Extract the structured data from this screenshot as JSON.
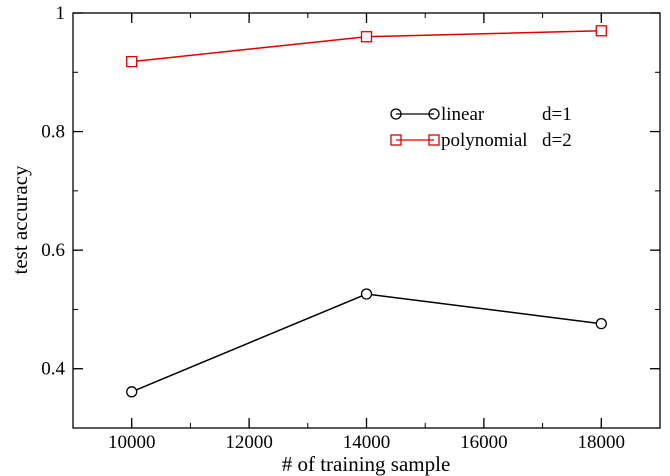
{
  "chart_data": {
    "type": "line",
    "title": "",
    "xlabel": "# of training sample",
    "ylabel": "test accuracy",
    "xlim": [
      9000,
      19000
    ],
    "ylim": [
      0.3,
      1.0
    ],
    "xticks": [
      10000,
      12000,
      14000,
      16000,
      18000
    ],
    "xtick_labels": [
      "10000",
      "12000",
      "14000",
      "16000",
      "18000"
    ],
    "yticks": [
      0.4,
      0.6,
      0.8,
      1.0
    ],
    "ytick_labels": [
      "0.4",
      "0.6",
      "0.8",
      "1"
    ],
    "grid": false,
    "legend_position": "upper-right",
    "series": [
      {
        "name": "linear",
        "legend_suffix": "d=1",
        "x": [
          10000,
          14000,
          18000
        ],
        "y": [
          0.361,
          0.526,
          0.476
        ],
        "color": "#000000",
        "marker": "circle"
      },
      {
        "name": "polynomial",
        "legend_suffix": "d=2",
        "x": [
          10000,
          14000,
          18000
        ],
        "y": [
          0.918,
          0.96,
          0.97
        ],
        "color": "#e00000",
        "marker": "square"
      }
    ]
  }
}
